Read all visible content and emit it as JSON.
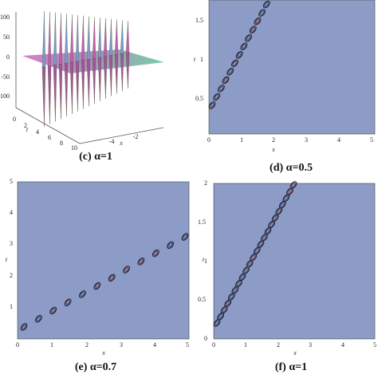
{
  "panels": [
    {
      "caption": "(c) α=1",
      "z_ticks": [
        100,
        50,
        0,
        -50,
        -100
      ],
      "t_ticks": [
        0,
        2,
        4,
        6,
        8,
        10
      ],
      "t_label": "t",
      "x_ticks": [
        -4,
        -2
      ],
      "x_label": "x"
    },
    {
      "caption": "(d) α=0.5",
      "x_ticks": [
        0,
        1,
        2,
        3,
        4,
        5
      ],
      "x_label": "x",
      "t_ticks": [
        1.5,
        1,
        0.5
      ],
      "t_label": "t"
    },
    {
      "caption": "(e) α=0.7",
      "x_ticks": [
        0,
        1,
        2,
        3,
        4,
        5
      ],
      "x_label": "x",
      "t_ticks": [
        5,
        4,
        3,
        2,
        1
      ],
      "t_label": "t"
    },
    {
      "caption": "(f) α=1",
      "x_ticks": [
        0,
        1,
        2,
        3,
        4,
        5
      ],
      "x_label": "x",
      "t_ticks": [
        2,
        1.5,
        1,
        0.5,
        0
      ],
      "t_label": "t"
    }
  ]
}
